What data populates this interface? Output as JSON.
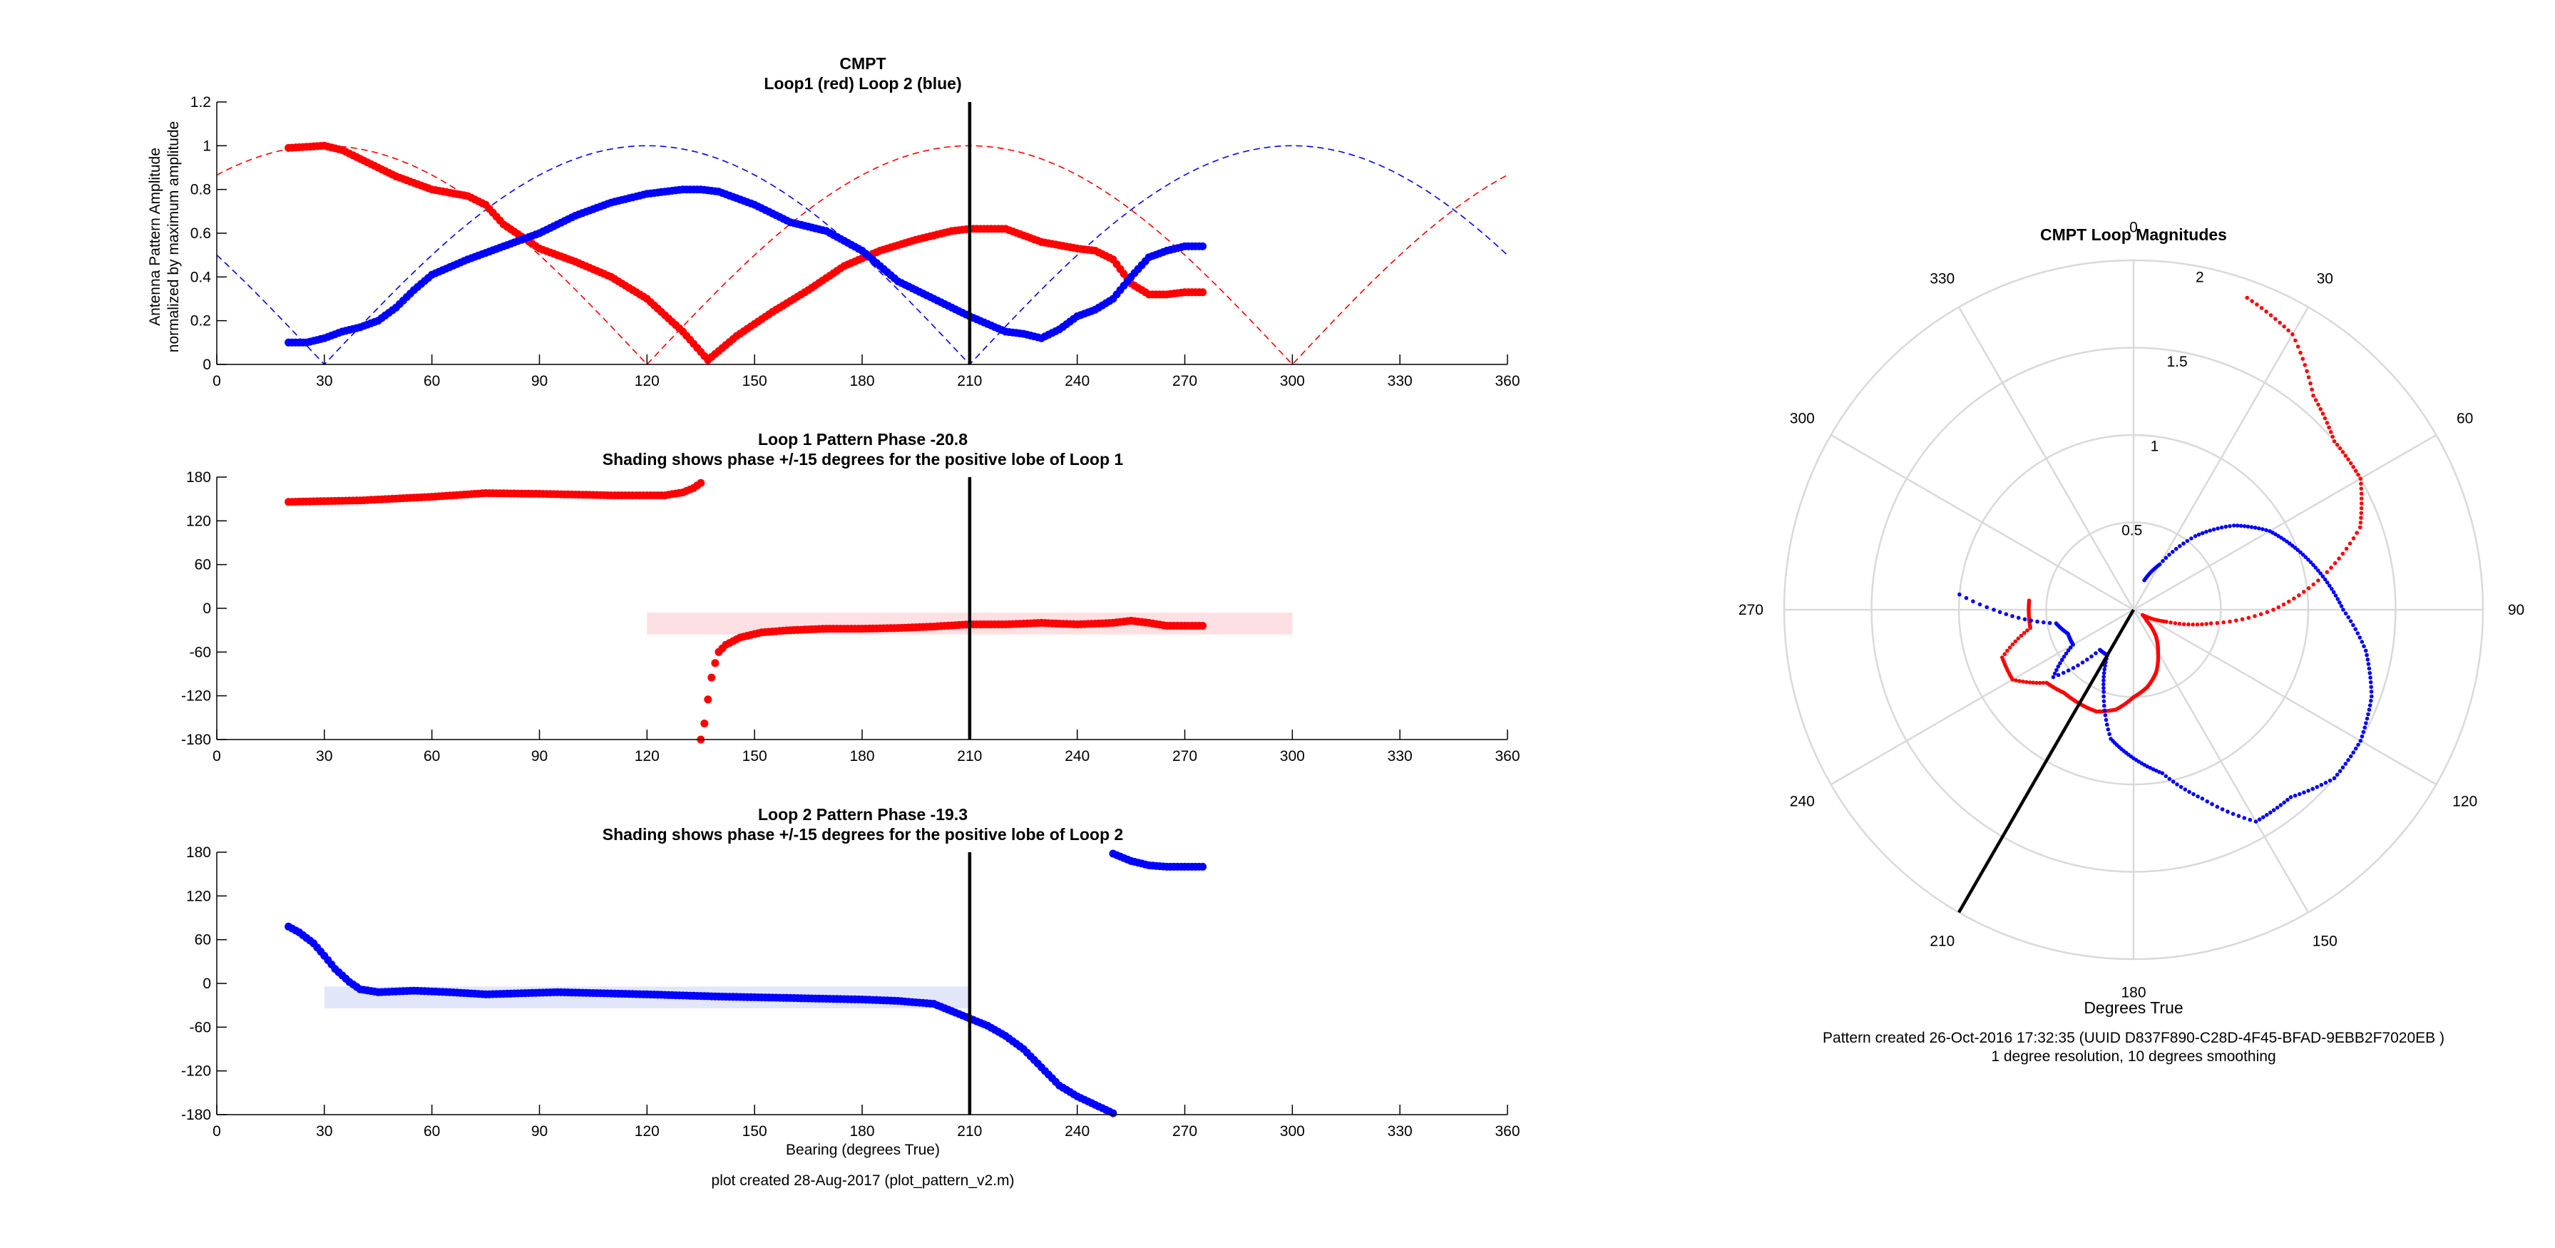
{
  "colors": {
    "loop1": "#ff0000",
    "loop2": "#0000ff",
    "shade1": "#fde0e3",
    "shade2": "#e2e6f9",
    "axis": "#000000",
    "polar_grid": "#d9d9d9"
  },
  "bearing_marker_deg": 210,
  "footer": {
    "left": "plot created 28-Aug-2017 (plot_pattern_v2.m)",
    "right_line1": "Pattern created 26-Oct-2016 17:32:35 (UUID D837F890-C28D-4F45-BFAD-9EBB2F7020EB )",
    "right_line2": "1 degree resolution, 10 degrees smoothing"
  },
  "chart_data": [
    {
      "type": "line",
      "title": "CMPT",
      "subtitle": "Loop1 (red) Loop 2 (blue)",
      "ylabel": "Antenna Pattern Amplitude",
      "ylabel2": "normalized by maximum amplitude",
      "xlabel": "",
      "xlim": [
        0,
        360
      ],
      "ylim": [
        0,
        1.2
      ],
      "xticks": [
        "0",
        "30",
        "60",
        "90",
        "120",
        "150",
        "180",
        "210",
        "240",
        "270",
        "300",
        "330",
        "360"
      ],
      "yticks": [
        "0",
        "0.2",
        "0.4",
        "0.6",
        "0.8",
        "1",
        "1.2"
      ],
      "ref_curves": [
        {
          "color": "#ff0000",
          "style": "dashed",
          "formula": "abs(cos(bearing - 210))"
        },
        {
          "color": "#0000ff",
          "style": "dashed",
          "formula": "abs(cos(bearing - 120))"
        }
      ],
      "series": [
        {
          "color": "#ff0000",
          "x": [
            20,
            30,
            35,
            40,
            50,
            60,
            70,
            75,
            80,
            90,
            100,
            110,
            120,
            130,
            137,
            145,
            155,
            165,
            175,
            185,
            195,
            205,
            210,
            220,
            230,
            240,
            245,
            250,
            255,
            260,
            265,
            270,
            275
          ],
          "y": [
            0.99,
            1.0,
            0.98,
            0.94,
            0.86,
            0.8,
            0.77,
            0.73,
            0.64,
            0.53,
            0.47,
            0.4,
            0.3,
            0.15,
            0.02,
            0.13,
            0.24,
            0.34,
            0.45,
            0.52,
            0.57,
            0.61,
            0.62,
            0.62,
            0.56,
            0.53,
            0.52,
            0.48,
            0.37,
            0.32,
            0.32,
            0.33,
            0.33
          ]
        },
        {
          "color": "#0000ff",
          "x": [
            20,
            25,
            30,
            35,
            40,
            45,
            50,
            55,
            60,
            70,
            80,
            90,
            100,
            110,
            120,
            130,
            135,
            140,
            150,
            160,
            170,
            180,
            190,
            200,
            210,
            220,
            225,
            230,
            235,
            240,
            245,
            250,
            255,
            260,
            265,
            270,
            275
          ],
          "y": [
            0.1,
            0.1,
            0.12,
            0.15,
            0.17,
            0.2,
            0.26,
            0.34,
            0.41,
            0.48,
            0.54,
            0.6,
            0.68,
            0.74,
            0.78,
            0.8,
            0.8,
            0.79,
            0.73,
            0.65,
            0.61,
            0.52,
            0.38,
            0.3,
            0.22,
            0.15,
            0.14,
            0.12,
            0.16,
            0.22,
            0.25,
            0.3,
            0.4,
            0.49,
            0.52,
            0.54,
            0.54
          ]
        }
      ]
    },
    {
      "type": "scatter",
      "title": "Loop 1 Pattern Phase -20.8",
      "subtitle": "Shading shows phase +/-15 degrees for the positive lobe of Loop 1",
      "xlabel": "",
      "ylabel": "",
      "xlim": [
        0,
        360
      ],
      "ylim": [
        -180,
        180
      ],
      "xticks": [
        "0",
        "30",
        "60",
        "90",
        "120",
        "150",
        "180",
        "210",
        "240",
        "270",
        "300",
        "330",
        "360"
      ],
      "yticks": [
        "-180",
        "-120",
        "-60",
        "0",
        "60",
        "120",
        "180"
      ],
      "shade": {
        "x": [
          120,
          300
        ],
        "y": [
          -35.8,
          -5.8
        ],
        "color": "#fde0e3"
      },
      "series": [
        {
          "color": "#ff0000",
          "x": [
            20,
            40,
            60,
            75,
            90,
            110,
            125,
            130,
            133,
            135
          ],
          "y": [
            146,
            148,
            153,
            158,
            157,
            155,
            155,
            159,
            165,
            172
          ]
        },
        {
          "color": "#ff0000",
          "x": [
            135,
            136,
            137,
            138,
            139,
            140,
            142,
            146,
            152,
            160,
            170,
            180,
            190,
            200,
            210,
            220,
            230,
            240,
            250,
            255,
            260,
            265,
            270,
            275
          ],
          "y": [
            -180,
            -158,
            -125,
            -95,
            -75,
            -60,
            -50,
            -40,
            -33,
            -30,
            -28,
            -28,
            -27,
            -25,
            -22,
            -22,
            -20,
            -22,
            -20,
            -17,
            -20,
            -24,
            -24,
            -24
          ]
        }
      ]
    },
    {
      "type": "scatter",
      "title": "Loop 2 Pattern Phase -19.3",
      "subtitle": "Shading shows phase +/-15 degrees for the positive lobe of Loop 2",
      "xlabel": "Bearing (degrees True)",
      "ylabel": "",
      "xlim": [
        0,
        360
      ],
      "ylim": [
        -180,
        180
      ],
      "xticks": [
        "0",
        "30",
        "60",
        "90",
        "120",
        "150",
        "180",
        "210",
        "240",
        "270",
        "300",
        "330",
        "360"
      ],
      "yticks": [
        "-180",
        "-120",
        "-60",
        "0",
        "60",
        "120",
        "180"
      ],
      "shade": {
        "x": [
          30,
          210
        ],
        "y": [
          -34.3,
          -4.3
        ],
        "color": "#e2e6f9"
      },
      "series": [
        {
          "color": "#0000ff",
          "x": [
            20,
            23,
            27,
            30,
            33,
            37,
            40,
            45,
            55,
            65,
            75,
            95,
            120,
            140,
            160,
            180,
            190,
            200,
            210,
            215,
            220,
            225,
            230,
            235,
            240,
            250
          ],
          "y": [
            78,
            70,
            55,
            38,
            20,
            2,
            -8,
            -12,
            -10,
            -12,
            -15,
            -12,
            -15,
            -18,
            -20,
            -22,
            -24,
            -28,
            -48,
            -58,
            -72,
            -90,
            -115,
            -140,
            -155,
            -178
          ]
        },
        {
          "color": "#0000ff",
          "x": [
            250,
            255,
            260,
            265,
            270,
            275
          ],
          "y": [
            178,
            168,
            162,
            160,
            160,
            160
          ]
        }
      ]
    },
    {
      "type": "scatter",
      "title": "CMPT Loop Magnitudes",
      "xlabel": "Degrees True",
      "ylabel": "",
      "polar": true,
      "theta_zero": "top",
      "theta_direction": "clockwise",
      "rlim": [
        0,
        2
      ],
      "rticks": [
        "0.5",
        "1",
        "1.5",
        "2"
      ],
      "theta_ticks": [
        "0",
        "30",
        "60",
        "90",
        "120",
        "150",
        "180",
        "210",
        "240",
        "270",
        "300",
        "330"
      ],
      "bearing_line": {
        "theta": 210,
        "r": 2
      },
      "series": [
        {
          "color": "#ff0000",
          "theta": [
            20,
            30,
            40,
            50,
            60,
            70,
            80,
            90,
            100,
            110,
            120,
            130,
            140,
            150,
            160,
            170,
            180,
            190,
            200,
            210,
            220,
            230,
            240,
            250,
            260,
            270,
            275
          ],
          "r": [
            1.9,
            1.82,
            1.6,
            1.5,
            1.5,
            1.38,
            1.1,
            0.8,
            0.45,
            0.2,
            0.06,
            0.1,
            0.2,
            0.28,
            0.38,
            0.45,
            0.5,
            0.58,
            0.62,
            0.62,
            0.62,
            0.65,
            0.8,
            0.8,
            0.6,
            0.6,
            0.6
          ]
        },
        {
          "color": "#0000ff",
          "theta": [
            20,
            30,
            40,
            50,
            60,
            70,
            80,
            90,
            100,
            110,
            120,
            130,
            140,
            150,
            160,
            170,
            180,
            190,
            200,
            210,
            220,
            230,
            240,
            250,
            260,
            270,
            275
          ],
          "r": [
            0.18,
            0.3,
            0.55,
            0.75,
            0.9,
            1.0,
            1.1,
            1.2,
            1.35,
            1.45,
            1.5,
            1.5,
            1.4,
            1.4,
            1.15,
            0.95,
            0.85,
            0.75,
            0.5,
            0.3,
            0.3,
            0.6,
            0.4,
            0.4,
            0.45,
            0.8,
            1.0
          ]
        }
      ]
    }
  ]
}
